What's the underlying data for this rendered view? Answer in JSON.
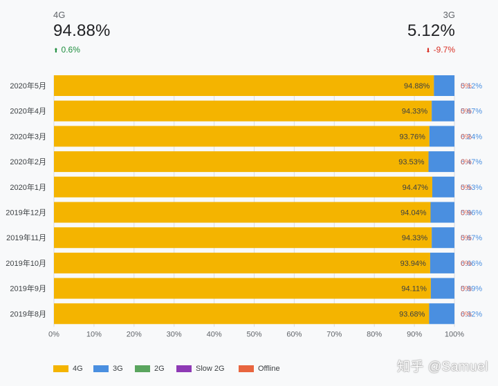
{
  "header": {
    "left": {
      "label": "4G",
      "value": "94.88%",
      "delta": "0.6%",
      "direction": "up"
    },
    "right": {
      "label": "3G",
      "value": "5.12%",
      "delta": "-9.7%",
      "direction": "down"
    }
  },
  "chart_data": {
    "type": "bar",
    "orientation": "horizontal",
    "stacked": true,
    "categories": [
      "2020年5月",
      "2020年4月",
      "2020年3月",
      "2020年2月",
      "2020年1月",
      "2019年12月",
      "2019年11月",
      "2019年10月",
      "2019年9月",
      "2019年8月"
    ],
    "series": [
      {
        "name": "4G",
        "color": "#f4b400",
        "values": [
          94.88,
          94.33,
          93.76,
          93.53,
          94.47,
          94.04,
          94.33,
          93.94,
          94.11,
          93.68
        ],
        "labels": [
          "94.88%",
          "94.33%",
          "93.76%",
          "93.53%",
          "94.47%",
          "94.04%",
          "94.33%",
          "93.94%",
          "94.11%",
          "93.68%"
        ]
      },
      {
        "name": "3G",
        "color": "#4a8fe0",
        "values": [
          5.12,
          5.67,
          6.24,
          6.47,
          5.53,
          5.96,
          5.67,
          6.06,
          5.89,
          6.32
        ],
        "labels": [
          "5.12%",
          "5.67%",
          "6.24%",
          "6.47%",
          "5.53%",
          "5.96%",
          "5.67%",
          "6.06%",
          "5.89%",
          "6.32%"
        ]
      },
      {
        "name": "2G",
        "color": "#5aa55e",
        "values": [
          0,
          0,
          0,
          0,
          0,
          0,
          0,
          0,
          0,
          0
        ]
      },
      {
        "name": "Slow 2G",
        "color": "#8e3ab5",
        "values": [
          0,
          0,
          0,
          0,
          0,
          0,
          0,
          0,
          0,
          0
        ]
      },
      {
        "name": "Offline",
        "color": "#e8653f",
        "values": [
          0,
          0,
          0,
          0,
          0,
          0,
          0,
          0,
          0,
          0
        ],
        "labels": [
          "0%",
          "0%",
          "0%",
          "0%",
          "0%",
          "0%",
          "0%",
          "0%",
          "0%",
          "0%"
        ]
      }
    ],
    "xticks": [
      "0%",
      "10%",
      "20%",
      "30%",
      "40%",
      "50%",
      "60%",
      "70%",
      "80%",
      "90%",
      "100%"
    ],
    "xlim": [
      0,
      100
    ],
    "grid": true,
    "legend": "bottom-left"
  },
  "watermark": "知乎 @Samuel"
}
